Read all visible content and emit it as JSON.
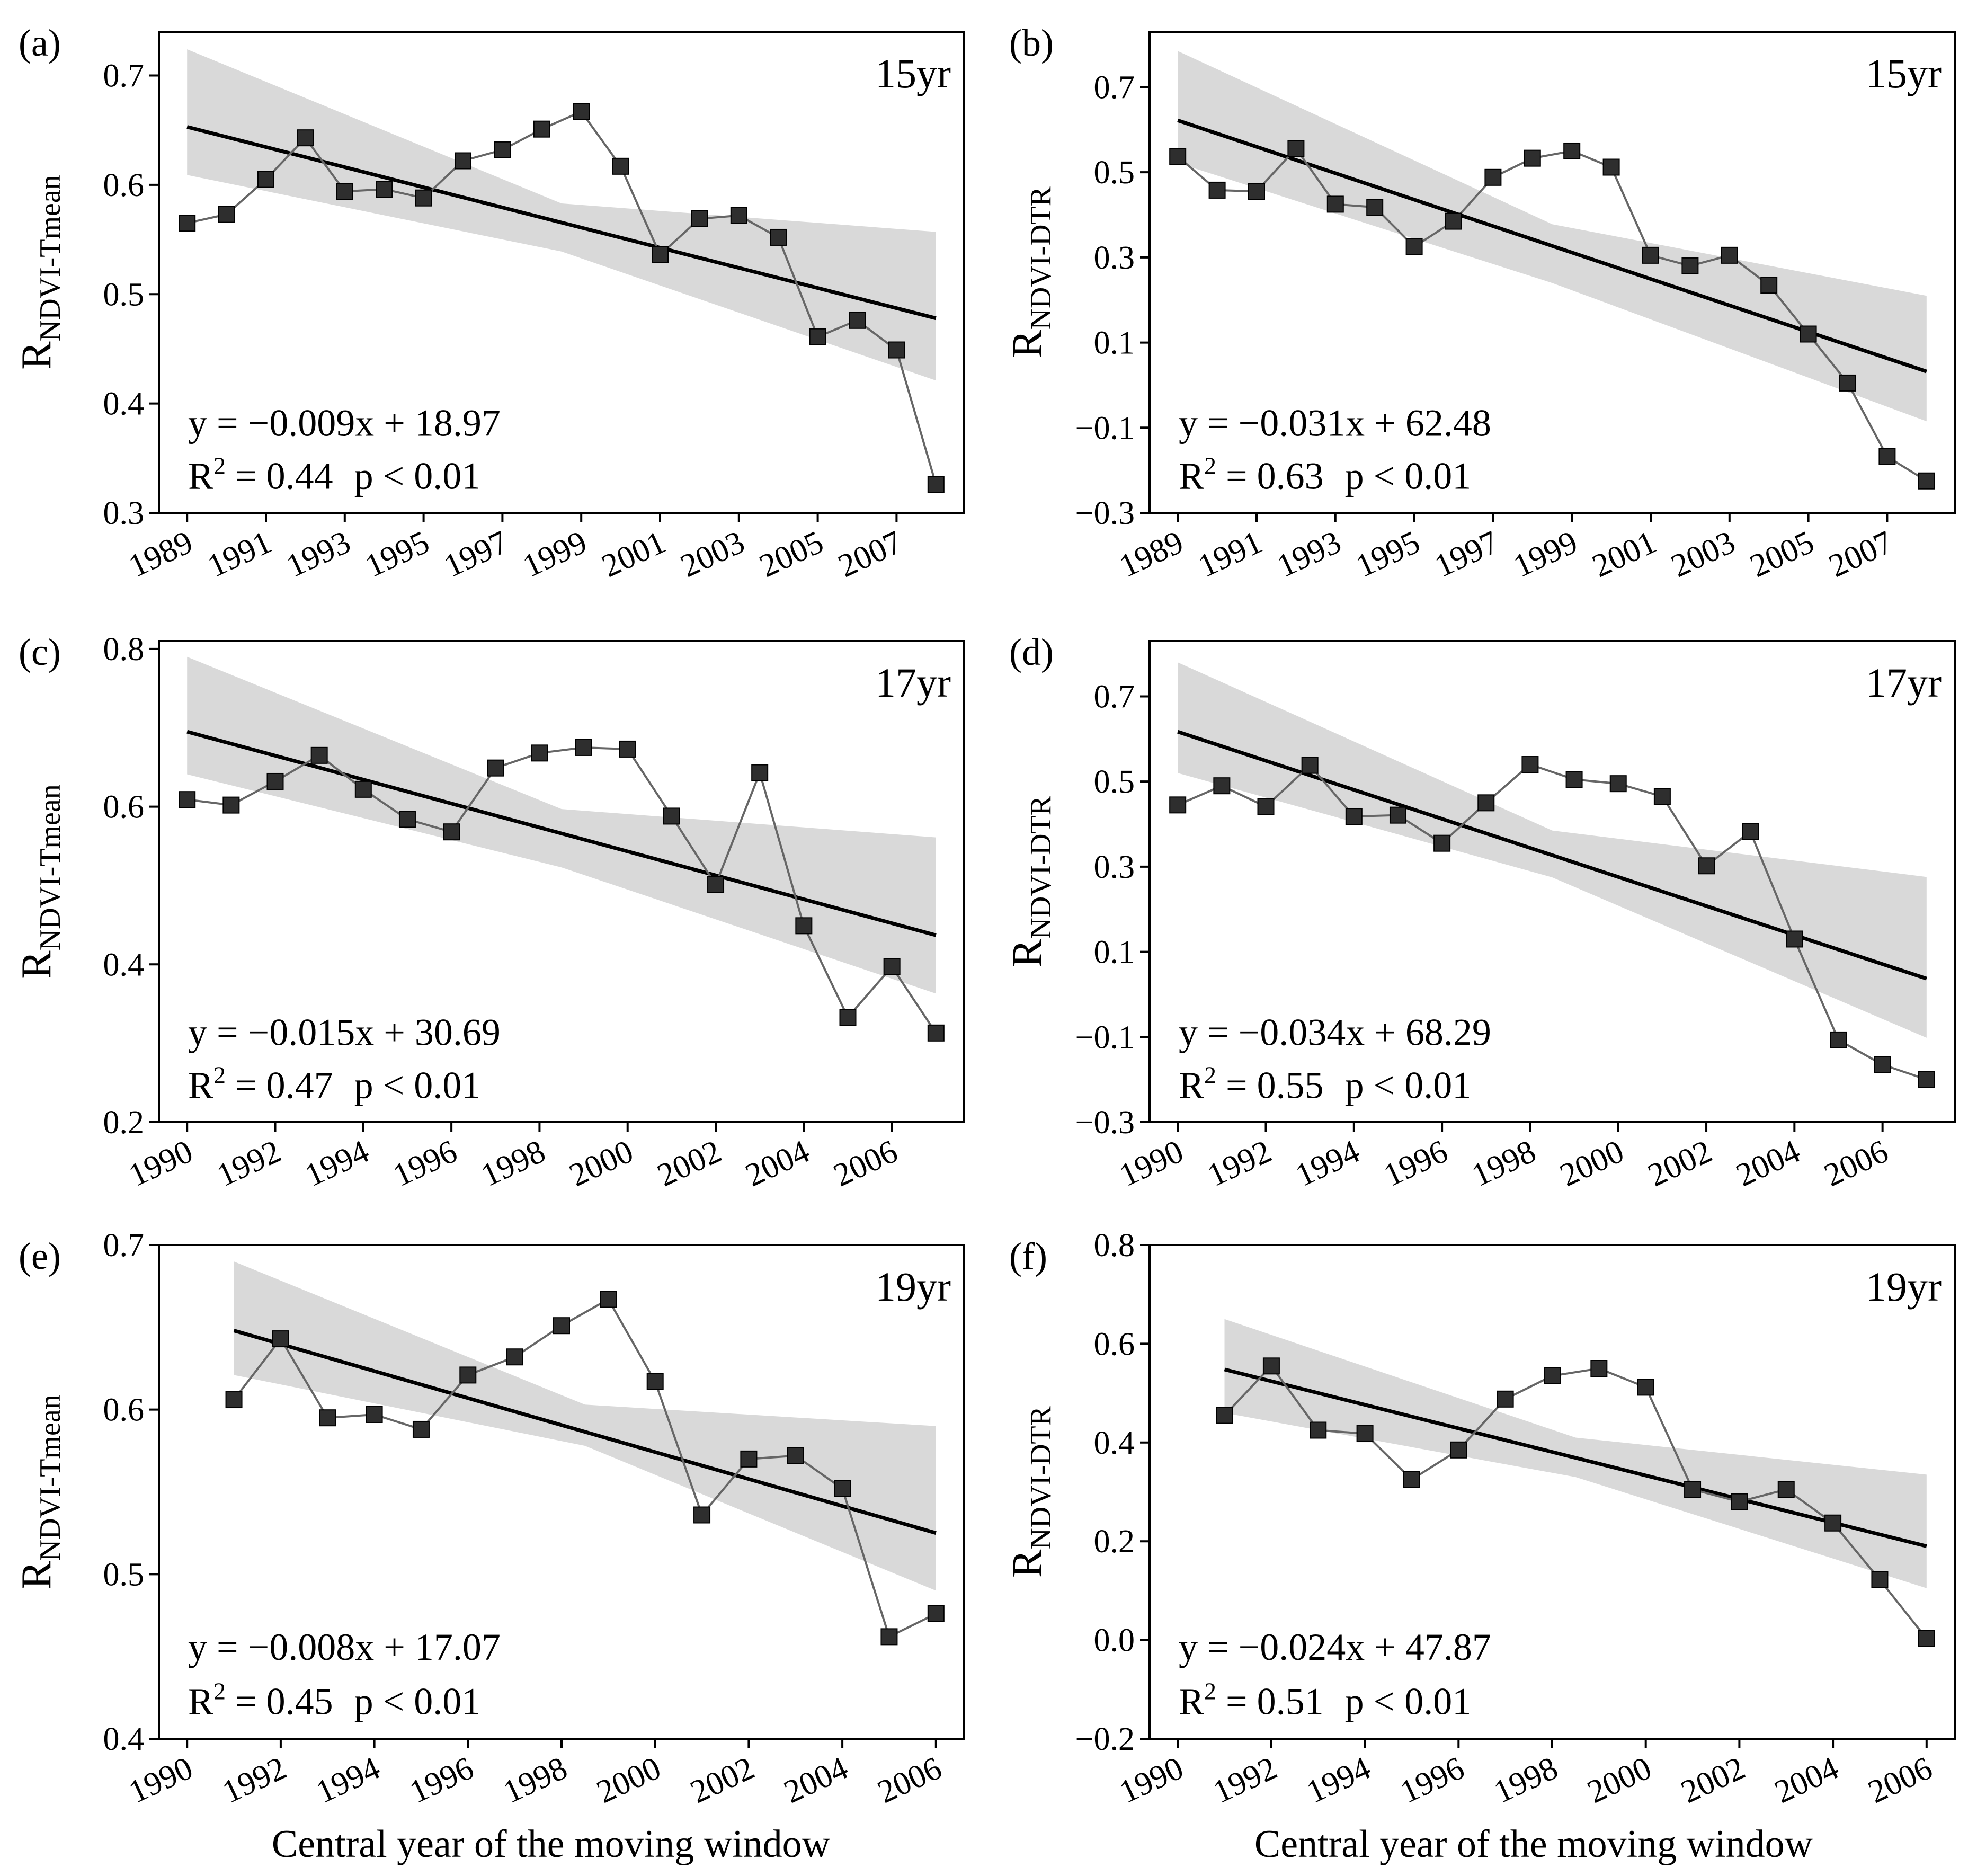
{
  "figure": {
    "xlabel": "Central year of the moving window"
  },
  "chart_data": [
    {
      "type": "line",
      "panel": "(a)",
      "window": "15yr",
      "ylabel_main": "R",
      "ylabel_sub": "NDVI-Tmean",
      "x": [
        1989,
        1990,
        1991,
        1992,
        1993,
        1994,
        1995,
        1996,
        1997,
        1998,
        1999,
        2000,
        2001,
        2002,
        2003,
        2004,
        2005,
        2006,
        2007,
        2008
      ],
      "values": [
        0.565,
        0.573,
        0.605,
        0.643,
        0.594,
        0.596,
        0.588,
        0.622,
        0.632,
        0.651,
        0.667,
        0.617,
        0.536,
        0.569,
        0.572,
        0.552,
        0.461,
        0.476,
        0.449,
        0.326
      ],
      "xticks": [
        1989,
        1991,
        1993,
        1995,
        1997,
        1999,
        2001,
        2003,
        2005,
        2007
      ],
      "xlim": [
        1989,
        2008
      ],
      "ylim": [
        0.3,
        0.74
      ],
      "yticks": [
        0.3,
        0.4,
        0.5,
        0.6,
        0.7
      ],
      "ytick_labels": [
        "0.3",
        "0.4",
        "0.5",
        "0.6",
        "0.7"
      ],
      "fit": {
        "start": 0.653,
        "end": 0.478
      },
      "ci_band": {
        "upper": [
          0.724,
          0.583,
          0.557
        ],
        "lower": [
          0.609,
          0.539,
          0.421
        ]
      },
      "equation": "y = −0.009x + 18.97",
      "r2_value": " = 0.44",
      "p_text": "p < 0.01",
      "colors": {
        "line": "#666666",
        "marker": "#2e2e2e",
        "fit": "#000000",
        "band": "#d9d9d9"
      }
    },
    {
      "type": "line",
      "panel": "(b)",
      "window": "15yr",
      "ylabel_main": "R",
      "ylabel_sub": "NDVI-DTR",
      "x": [
        1989,
        1990,
        1991,
        1992,
        1993,
        1994,
        1995,
        1996,
        1997,
        1998,
        1999,
        2000,
        2001,
        2002,
        2003,
        2004,
        2005,
        2006,
        2007,
        2008
      ],
      "values": [
        0.537,
        0.458,
        0.455,
        0.556,
        0.425,
        0.418,
        0.325,
        0.385,
        0.488,
        0.533,
        0.55,
        0.512,
        0.305,
        0.28,
        0.305,
        0.235,
        0.12,
        0.005,
        -0.168,
        -0.225
      ],
      "xticks": [
        1989,
        1991,
        1993,
        1995,
        1997,
        1999,
        2001,
        2003,
        2005,
        2007
      ],
      "xlim": [
        1989,
        2008
      ],
      "ylim": [
        -0.3,
        0.83
      ],
      "yticks": [
        -0.3,
        -0.1,
        0.1,
        0.3,
        0.5,
        0.7
      ],
      "ytick_labels": [
        "−0.3",
        "−0.1",
        "0.1",
        "0.3",
        "0.5",
        "0.7"
      ],
      "fit": {
        "start": 0.622,
        "end": 0.032
      },
      "ci_band": {
        "upper": [
          0.785,
          0.378,
          0.21
        ],
        "lower": [
          0.522,
          0.24,
          -0.085
        ]
      },
      "equation": "y = −0.031x + 62.48",
      "r2_value": " = 0.63",
      "p_text": "p < 0.01",
      "colors": {
        "line": "#666666",
        "marker": "#2e2e2e",
        "fit": "#000000",
        "band": "#d9d9d9"
      }
    },
    {
      "type": "line",
      "panel": "(c)",
      "window": "17yr",
      "ylabel_main": "R",
      "ylabel_sub": "NDVI-Tmean",
      "x": [
        1990,
        1991,
        1992,
        1993,
        1994,
        1995,
        1996,
        1997,
        1998,
        1999,
        2000,
        2001,
        2002,
        2003,
        2004,
        2005,
        2006,
        2007
      ],
      "values": [
        0.609,
        0.602,
        0.632,
        0.665,
        0.622,
        0.584,
        0.568,
        0.649,
        0.668,
        0.675,
        0.673,
        0.588,
        0.501,
        0.643,
        0.449,
        0.333,
        0.397,
        0.313
      ],
      "xticks": [
        1990,
        1992,
        1994,
        1996,
        1998,
        2000,
        2002,
        2004,
        2006
      ],
      "xlim": [
        1990,
        2007
      ],
      "ylim": [
        0.2,
        0.81
      ],
      "yticks": [
        0.2,
        0.4,
        0.6,
        0.8
      ],
      "ytick_labels": [
        "0.2",
        "0.4",
        "0.6",
        "0.8"
      ],
      "fit": {
        "start": 0.695,
        "end": 0.437
      },
      "ci_band": {
        "upper": [
          0.79,
          0.597,
          0.561
        ],
        "lower": [
          0.641,
          0.523,
          0.363
        ]
      },
      "equation": "y = −0.015x + 30.69",
      "r2_value": " = 0.47",
      "p_text": "p < 0.01",
      "colors": {
        "line": "#666666",
        "marker": "#2e2e2e",
        "fit": "#000000",
        "band": "#d9d9d9"
      }
    },
    {
      "type": "line",
      "panel": "(d)",
      "window": "17yr",
      "ylabel_main": "R",
      "ylabel_sub": "NDVI-DTR",
      "x": [
        1990,
        1991,
        1992,
        1993,
        1994,
        1995,
        1996,
        1997,
        1998,
        1999,
        2000,
        2001,
        2002,
        2003,
        2004,
        2005,
        2006,
        2007
      ],
      "values": [
        0.445,
        0.49,
        0.441,
        0.538,
        0.418,
        0.421,
        0.355,
        0.45,
        0.54,
        0.505,
        0.495,
        0.465,
        0.302,
        0.382,
        0.13,
        -0.107,
        -0.165,
        -0.2
      ],
      "xticks": [
        1990,
        1992,
        1994,
        1996,
        1998,
        2000,
        2002,
        2004,
        2006
      ],
      "xlim": [
        1990,
        2007
      ],
      "ylim": [
        -0.3,
        0.83
      ],
      "yticks": [
        -0.3,
        -0.1,
        0.1,
        0.3,
        0.5,
        0.7
      ],
      "ytick_labels": [
        "−0.3",
        "−0.1",
        "0.1",
        "0.3",
        "0.5",
        "0.7"
      ],
      "fit": {
        "start": 0.617,
        "end": 0.037
      },
      "ci_band": {
        "upper": [
          0.78,
          0.385,
          0.276
        ],
        "lower": [
          0.52,
          0.275,
          -0.102
        ]
      },
      "equation": "y = −0.034x + 68.29",
      "r2_value": " = 0.55",
      "p_text": "p < 0.01",
      "colors": {
        "line": "#666666",
        "marker": "#2e2e2e",
        "fit": "#000000",
        "band": "#d9d9d9"
      }
    },
    {
      "type": "line",
      "panel": "(e)",
      "window": "19yr",
      "ylabel_main": "R",
      "ylabel_sub": "NDVI-Tmean",
      "x": [
        1991,
        1992,
        1993,
        1994,
        1995,
        1996,
        1997,
        1998,
        1999,
        2000,
        2001,
        2002,
        2003,
        2004,
        2005,
        2006
      ],
      "values": [
        0.606,
        0.643,
        0.595,
        0.597,
        0.588,
        0.621,
        0.632,
        0.651,
        0.667,
        0.617,
        0.536,
        0.57,
        0.572,
        0.552,
        0.462,
        0.476
      ],
      "xticks": [
        1990,
        1992,
        1994,
        1996,
        1998,
        2000,
        2002,
        2004,
        2006
      ],
      "xlim": [
        1990,
        2006
      ],
      "ylim": [
        0.4,
        0.7
      ],
      "yticks": [
        0.4,
        0.5,
        0.6,
        0.7
      ],
      "ytick_labels": [
        "0.4",
        "0.5",
        "0.6",
        "0.7"
      ],
      "fit": {
        "start": 0.648,
        "end": 0.525
      },
      "ci_band": {
        "upper": [
          0.69,
          0.603,
          0.59
        ],
        "lower": [
          0.621,
          0.578,
          0.49
        ]
      },
      "equation": "y = −0.008x + 17.07",
      "r2_value": " = 0.45",
      "p_text": "p < 0.01",
      "colors": {
        "line": "#666666",
        "marker": "#2e2e2e",
        "fit": "#000000",
        "band": "#d9d9d9"
      }
    },
    {
      "type": "line",
      "panel": "(f)",
      "window": "19yr",
      "ylabel_main": "R",
      "ylabel_sub": "NDVI-DTR",
      "x": [
        1991,
        1992,
        1993,
        1994,
        1995,
        1996,
        1997,
        1998,
        1999,
        2000,
        2001,
        2002,
        2003,
        2004,
        2005,
        2006
      ],
      "values": [
        0.455,
        0.555,
        0.425,
        0.418,
        0.325,
        0.385,
        0.488,
        0.535,
        0.55,
        0.512,
        0.305,
        0.28,
        0.305,
        0.237,
        0.122,
        0.003
      ],
      "xticks": [
        1990,
        1992,
        1994,
        1996,
        1998,
        2000,
        2002,
        2004,
        2006
      ],
      "xlim": [
        1990,
        2006
      ],
      "ylim": [
        -0.2,
        0.8
      ],
      "yticks": [
        -0.2,
        0.0,
        0.2,
        0.4,
        0.6,
        0.8
      ],
      "ytick_labels": [
        "−0.2",
        "0.0",
        "0.2",
        "0.4",
        "0.6",
        "0.8"
      ],
      "fit": {
        "start": 0.548,
        "end": 0.19
      },
      "ci_band": {
        "upper": [
          0.65,
          0.41,
          0.335
        ],
        "lower": [
          0.46,
          0.33,
          0.105
        ]
      },
      "equation": "y = −0.024x + 47.87",
      "r2_value": " = 0.51",
      "p_text": "p < 0.01",
      "colors": {
        "line": "#666666",
        "marker": "#2e2e2e",
        "fit": "#000000",
        "band": "#d9d9d9"
      }
    }
  ]
}
